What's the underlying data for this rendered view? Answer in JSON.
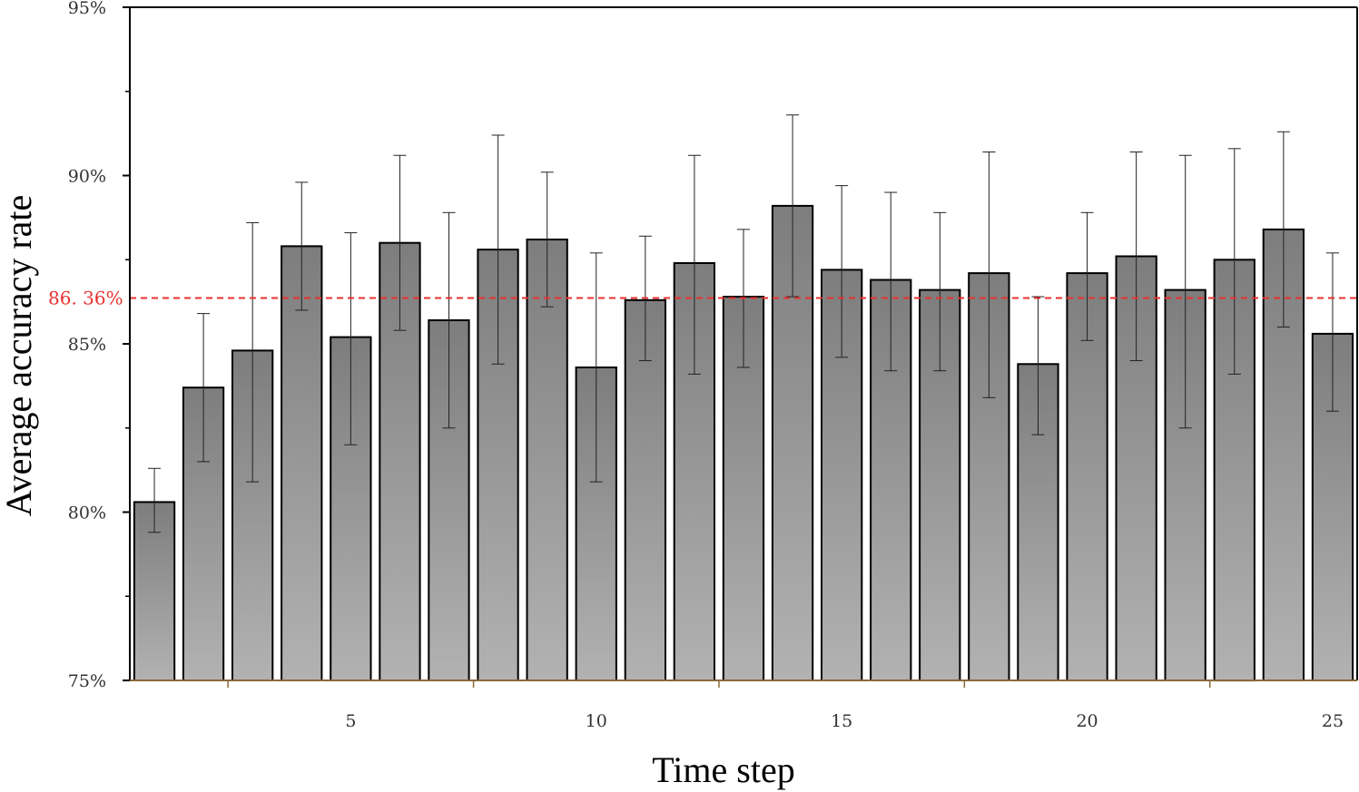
{
  "chart_data": {
    "type": "bar",
    "xlabel": "Time step",
    "ylabel": "Average accuracy rate",
    "ylim": [
      75,
      95
    ],
    "xlim": [
      0.5,
      25.5
    ],
    "y_ticks": [
      {
        "value": 75,
        "label": "75%"
      },
      {
        "value": 80,
        "label": "80%"
      },
      {
        "value": 85,
        "label": "85%"
      },
      {
        "value": 90,
        "label": "90%"
      },
      {
        "value": 95,
        "label": "95%"
      }
    ],
    "x_ticks": [
      {
        "value": 5,
        "label": "5"
      },
      {
        "value": 10,
        "label": "10"
      },
      {
        "value": 15,
        "label": "15"
      },
      {
        "value": 20,
        "label": "20"
      },
      {
        "value": 25,
        "label": "25"
      }
    ],
    "x": [
      1,
      2,
      3,
      4,
      5,
      6,
      7,
      8,
      9,
      10,
      11,
      12,
      13,
      14,
      15,
      16,
      17,
      18,
      19,
      20,
      21,
      22,
      23,
      24,
      25
    ],
    "values": [
      80.3,
      83.7,
      84.8,
      87.9,
      85.2,
      88.0,
      85.7,
      87.8,
      88.1,
      84.3,
      86.3,
      87.4,
      86.4,
      89.1,
      87.2,
      86.9,
      86.6,
      87.1,
      84.4,
      87.1,
      87.6,
      86.6,
      87.5,
      88.4,
      85.3
    ],
    "error_upper": [
      81.3,
      85.9,
      88.6,
      89.8,
      88.3,
      90.6,
      88.9,
      91.2,
      90.1,
      87.7,
      88.2,
      90.6,
      88.4,
      91.8,
      89.7,
      89.5,
      88.9,
      90.7,
      86.4,
      88.9,
      90.7,
      90.6,
      90.8,
      91.3,
      87.7
    ],
    "error_lower": [
      79.4,
      81.5,
      80.9,
      86.0,
      82.0,
      85.4,
      82.5,
      84.4,
      86.1,
      80.9,
      84.5,
      84.1,
      84.3,
      86.4,
      84.6,
      84.2,
      84.2,
      83.4,
      82.3,
      85.1,
      84.5,
      82.5,
      84.1,
      85.5,
      83.0
    ],
    "reference_line": {
      "value": 86.36,
      "label": "86. 36%",
      "color": "#e8312f",
      "style": "dashed"
    },
    "bar_gradient": {
      "top": "#7d7d7d",
      "bottom": "#b2b2b2"
    },
    "grid": false,
    "legend": "none"
  }
}
